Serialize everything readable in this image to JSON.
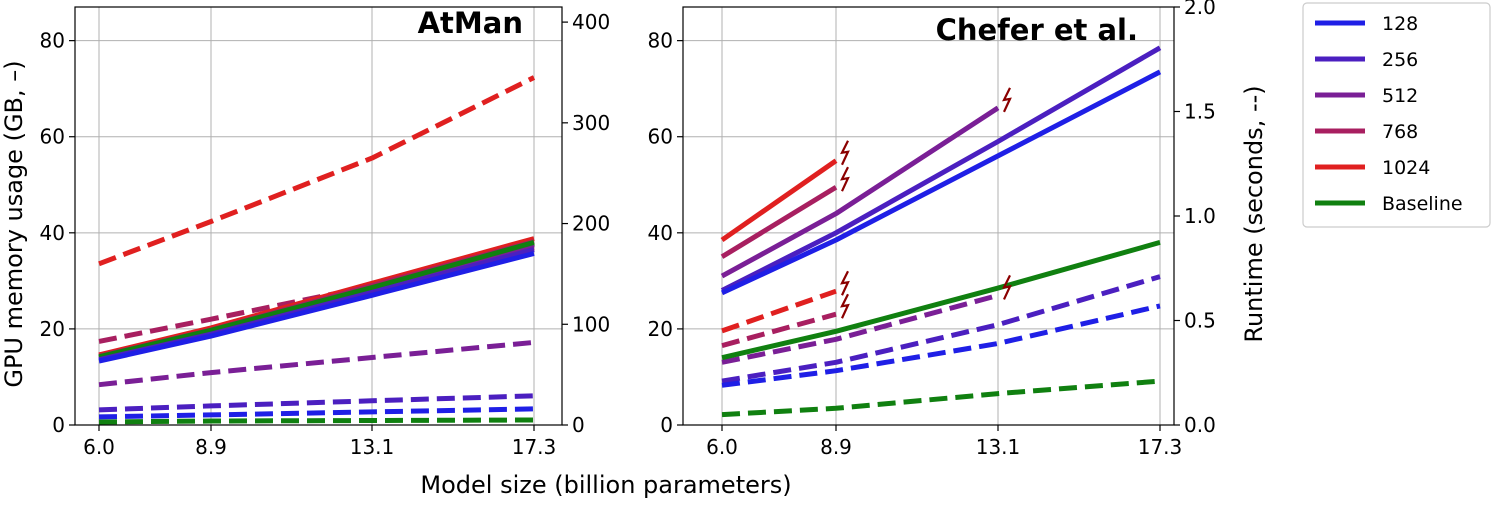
{
  "chart_data": {
    "type": "line",
    "xlabel": "Model size (billion parameters)",
    "ylabel_left": "GPU memory usage (GB, –)",
    "ylabel_right": "Runtime (seconds, --)",
    "x": [
      6.0,
      8.9,
      13.1,
      17.3
    ],
    "x_tick_labels": [
      "6.0",
      "8.9",
      "13.1",
      "17.3"
    ],
    "legend": {
      "placement": "outside-right",
      "items": [
        {
          "label": "128",
          "color": "#1f1fe6"
        },
        {
          "label": "256",
          "color": "#4b1fc0"
        },
        {
          "label": "512",
          "color": "#7a1f96"
        },
        {
          "label": "768",
          "color": "#a81f60"
        },
        {
          "label": "1024",
          "color": "#e02020"
        },
        {
          "label": "Baseline",
          "color": "#108010"
        }
      ]
    },
    "oom_marker_color": "#8b0000",
    "panels": [
      {
        "title": "AtMan",
        "grid": true,
        "y_left": {
          "range": [
            0,
            87
          ],
          "ticks": [
            0,
            20,
            40,
            60,
            80
          ]
        },
        "y_right": {
          "range": [
            0,
            415
          ],
          "ticks": [
            0,
            100,
            200,
            300,
            400
          ]
        },
        "memory_series": [
          {
            "series": "1024",
            "x": [
              6.0,
              8.9,
              13.1,
              17.3
            ],
            "y": [
              14.6,
              20.2,
              29.5,
              38.8
            ]
          },
          {
            "series": "768",
            "x": [
              6.0,
              8.9,
              13.1,
              17.3
            ],
            "y": [
              14.3,
              19.8,
              29.0,
              38.2
            ]
          },
          {
            "series": "512",
            "x": [
              6.0,
              8.9,
              13.1,
              17.3
            ],
            "y": [
              14.0,
              19.4,
              28.5,
              37.5
            ]
          },
          {
            "series": "Baseline",
            "x": [
              6.0,
              8.9,
              13.1,
              17.3
            ],
            "y": [
              14.2,
              19.7,
              28.6,
              38.0
            ]
          },
          {
            "series": "256",
            "x": [
              6.0,
              8.9,
              13.1,
              17.3
            ],
            "y": [
              13.6,
              18.9,
              27.6,
              36.5
            ]
          },
          {
            "series": "128",
            "x": [
              6.0,
              8.9,
              13.1,
              17.3
            ],
            "y": [
              13.3,
              18.5,
              27.0,
              35.7
            ]
          }
        ],
        "runtime_series": [
          {
            "series": "1024",
            "x": [
              6.0,
              8.9,
              13.1,
              17.3
            ],
            "y": [
              160,
              202,
              265,
              345
            ]
          },
          {
            "series": "768",
            "x": [
              6.0,
              8.9,
              13.1,
              17.3
            ],
            "y": [
              83,
              105,
              138,
              176
            ]
          },
          {
            "series": "Baseline",
            "x": [
              6.0,
              8.9,
              13.1,
              17.3
            ],
            "y": [
              67,
              92,
              130,
              180
            ]
          },
          {
            "series": "512",
            "x": [
              6.0,
              8.9,
              13.1,
              17.3
            ],
            "y": [
              40,
              52,
              67,
              82
            ]
          },
          {
            "series": "256",
            "x": [
              6.0,
              8.9,
              13.1,
              17.3
            ],
            "y": [
              15,
              19,
              24,
              29
            ]
          },
          {
            "series": "128",
            "x": [
              6.0,
              8.9,
              13.1,
              17.3
            ],
            "y": [
              8,
              10,
              13,
              16
            ]
          },
          {
            "series": "Baseline",
            "x": [
              6.0,
              8.9,
              13.1,
              17.3
            ],
            "y": [
              3,
              4,
              4.5,
              5
            ]
          }
        ],
        "oom_markers": []
      },
      {
        "title": "Chefer et al.",
        "grid": true,
        "y_left": {
          "range": [
            0,
            87
          ],
          "ticks": [
            0,
            20,
            40,
            60,
            80
          ]
        },
        "y_right": {
          "range": [
            0,
            2.0
          ],
          "ticks": [
            0.0,
            0.5,
            1.0,
            1.5,
            2.0
          ],
          "tick_labels": [
            "0.0",
            "0.5",
            "1.0",
            "1.5",
            "2.0"
          ]
        },
        "memory_series": [
          {
            "series": "1024",
            "x": [
              6.0,
              8.9
            ],
            "y": [
              38.5,
              55.0
            ]
          },
          {
            "series": "768",
            "x": [
              6.0,
              8.9
            ],
            "y": [
              35.0,
              49.5
            ]
          },
          {
            "series": "512",
            "x": [
              6.0,
              8.9,
              13.1
            ],
            "y": [
              31.0,
              44.0,
              66.0
            ]
          },
          {
            "series": "256",
            "x": [
              6.0,
              8.9,
              13.1,
              17.3
            ],
            "y": [
              28.0,
              40.0,
              59.0,
              78.5
            ]
          },
          {
            "series": "128",
            "x": [
              6.0,
              8.9,
              13.1,
              17.3
            ],
            "y": [
              27.5,
              38.5,
              56.0,
              73.5
            ]
          },
          {
            "series": "Baseline",
            "x": [
              6.0,
              8.9,
              13.1,
              17.3
            ],
            "y": [
              14.0,
              19.5,
              28.5,
              38.0
            ]
          }
        ],
        "runtime_series": [
          {
            "series": "1024",
            "x": [
              6.0,
              8.9
            ],
            "y": [
              0.45,
              0.64
            ]
          },
          {
            "series": "768",
            "x": [
              6.0,
              8.9
            ],
            "y": [
              0.38,
              0.53
            ]
          },
          {
            "series": "512",
            "x": [
              6.0,
              8.9,
              13.1
            ],
            "y": [
              0.3,
              0.41,
              0.62
            ]
          },
          {
            "series": "256",
            "x": [
              6.0,
              8.9,
              13.1,
              17.3
            ],
            "y": [
              0.21,
              0.3,
              0.48,
              0.71
            ]
          },
          {
            "series": "128",
            "x": [
              6.0,
              8.9,
              13.1,
              17.3
            ],
            "y": [
              0.19,
              0.26,
              0.39,
              0.57
            ]
          },
          {
            "series": "Baseline",
            "x": [
              6.0,
              8.9,
              13.1,
              17.3
            ],
            "y": [
              0.05,
              0.08,
              0.15,
              0.21
            ]
          }
        ],
        "oom_markers": [
          {
            "axis": "left",
            "x": 8.9,
            "y": 55.0
          },
          {
            "axis": "left",
            "x": 8.9,
            "y": 49.5
          },
          {
            "axis": "left",
            "x": 13.1,
            "y": 66.0
          },
          {
            "axis": "right",
            "x": 8.9,
            "y": 0.64
          },
          {
            "axis": "right",
            "x": 8.9,
            "y": 0.53
          },
          {
            "axis": "right",
            "x": 13.1,
            "y": 0.62
          }
        ]
      }
    ]
  }
}
